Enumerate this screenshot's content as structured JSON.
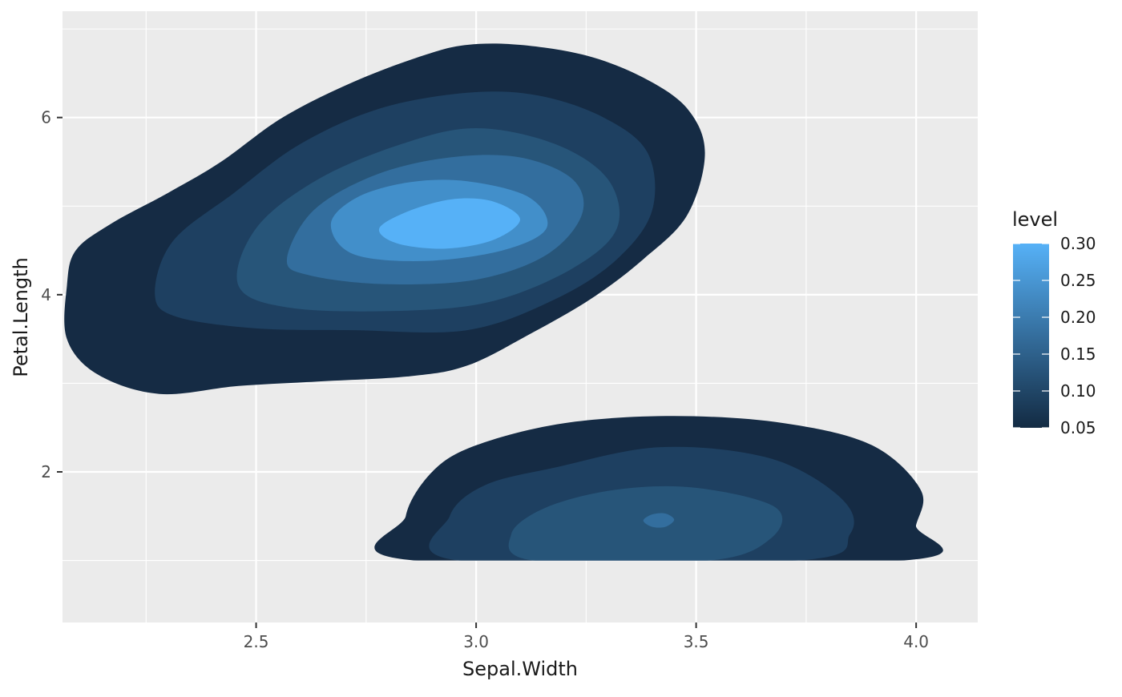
{
  "chart_data": {
    "type": "filled-density-contour",
    "title": "",
    "xlabel": "Sepal.Width",
    "ylabel": "Petal.Length",
    "xlim": [
      2.06,
      4.14
    ],
    "ylim": [
      0.3,
      7.2
    ],
    "x_ticks": [
      {
        "value": 2.5,
        "label": "2.5"
      },
      {
        "value": 3.0,
        "label": "3.0"
      },
      {
        "value": 3.5,
        "label": "3.5"
      },
      {
        "value": 4.0,
        "label": "4.0"
      }
    ],
    "y_ticks": [
      {
        "value": 2,
        "label": "2"
      },
      {
        "value": 4,
        "label": "4"
      },
      {
        "value": 6,
        "label": "6"
      }
    ],
    "x_minor": [
      2.25,
      2.75,
      3.25,
      3.75
    ],
    "y_minor": [
      1,
      3,
      5,
      7
    ],
    "grid": true,
    "legend": {
      "title": "level",
      "position": "right",
      "labels": [
        {
          "value": 0.05,
          "label": "0.05"
        },
        {
          "value": 0.1,
          "label": "0.10"
        },
        {
          "value": 0.15,
          "label": "0.15"
        },
        {
          "value": 0.2,
          "label": "0.20"
        },
        {
          "value": 0.25,
          "label": "0.25"
        },
        {
          "value": 0.3,
          "label": "0.30"
        }
      ],
      "range": [
        0.05,
        0.3
      ],
      "low_color": "#132B43",
      "high_color": "#56B1F7"
    },
    "levels": [
      {
        "level": 0.05,
        "color": "#152b44",
        "polygons": [
          [
            [
              2.07,
              4.1
            ],
            [
              2.09,
              4.5
            ],
            [
              2.17,
              4.8
            ],
            [
              2.3,
              5.15
            ],
            [
              2.42,
              5.5
            ],
            [
              2.56,
              6.0
            ],
            [
              2.72,
              6.4
            ],
            [
              2.88,
              6.7
            ],
            [
              2.98,
              6.82
            ],
            [
              3.1,
              6.82
            ],
            [
              3.25,
              6.7
            ],
            [
              3.38,
              6.45
            ],
            [
              3.48,
              6.1
            ],
            [
              3.52,
              5.6
            ],
            [
              3.48,
              4.9
            ],
            [
              3.38,
              4.4
            ],
            [
              3.26,
              3.95
            ],
            [
              3.12,
              3.55
            ],
            [
              2.98,
              3.2
            ],
            [
              2.85,
              3.08
            ],
            [
              2.64,
              3.02
            ],
            [
              2.46,
              2.97
            ],
            [
              2.28,
              2.88
            ],
            [
              2.14,
              3.1
            ],
            [
              2.07,
              3.5
            ]
          ],
          [
            [
              2.86,
              1.0
            ],
            [
              2.84,
              1.5
            ],
            [
              2.9,
              2.0
            ],
            [
              3.0,
              2.3
            ],
            [
              3.2,
              2.55
            ],
            [
              3.45,
              2.63
            ],
            [
              3.7,
              2.55
            ],
            [
              3.9,
              2.3
            ],
            [
              4.01,
              1.8
            ],
            [
              4.0,
              1.4
            ],
            [
              3.97,
              1.0
            ]
          ]
        ]
      },
      {
        "level": 0.1,
        "color": "#1e4061",
        "polygons": [
          [
            [
              2.27,
              4.0
            ],
            [
              2.31,
              4.6
            ],
            [
              2.45,
              5.15
            ],
            [
              2.6,
              5.7
            ],
            [
              2.78,
              6.1
            ],
            [
              2.98,
              6.28
            ],
            [
              3.14,
              6.25
            ],
            [
              3.29,
              6.0
            ],
            [
              3.39,
              5.6
            ],
            [
              3.4,
              4.95
            ],
            [
              3.32,
              4.4
            ],
            [
              3.18,
              3.95
            ],
            [
              2.98,
              3.6
            ],
            [
              2.72,
              3.6
            ],
            [
              2.5,
              3.62
            ],
            [
              2.32,
              3.75
            ]
          ],
          [
            [
              2.96,
              1.0
            ],
            [
              2.94,
              1.5
            ],
            [
              3.02,
              1.85
            ],
            [
              3.18,
              2.05
            ],
            [
              3.42,
              2.28
            ],
            [
              3.67,
              2.15
            ],
            [
              3.83,
              1.7
            ],
            [
              3.85,
              1.3
            ],
            [
              3.73,
              1.0
            ]
          ]
        ]
      },
      {
        "level": 0.15,
        "color": "#275579",
        "polygons": [
          [
            [
              2.46,
              4.1
            ],
            [
              2.5,
              4.75
            ],
            [
              2.64,
              5.3
            ],
            [
              2.83,
              5.7
            ],
            [
              3.0,
              5.88
            ],
            [
              3.18,
              5.7
            ],
            [
              3.3,
              5.3
            ],
            [
              3.32,
              4.75
            ],
            [
              3.22,
              4.3
            ],
            [
              3.04,
              3.93
            ],
            [
              2.84,
              3.82
            ],
            [
              2.58,
              3.85
            ]
          ],
          [
            [
              3.13,
              1.0
            ],
            [
              3.08,
              1.3
            ],
            [
              3.16,
              1.6
            ],
            [
              3.32,
              1.8
            ],
            [
              3.5,
              1.82
            ],
            [
              3.68,
              1.6
            ],
            [
              3.67,
              1.25
            ],
            [
              3.53,
              1.0
            ]
          ]
        ]
      },
      {
        "level": 0.2,
        "color": "#336e9e",
        "polygons": [
          [
            [
              2.57,
              4.4
            ],
            [
              2.63,
              4.95
            ],
            [
              2.77,
              5.35
            ],
            [
              2.94,
              5.55
            ],
            [
              3.1,
              5.55
            ],
            [
              3.22,
              5.3
            ],
            [
              3.24,
              4.9
            ],
            [
              3.16,
              4.45
            ],
            [
              3.0,
              4.17
            ],
            [
              2.79,
              4.12
            ],
            [
              2.62,
              4.22
            ]
          ]
        ]
      },
      {
        "level": 0.25,
        "color": "#428fca",
        "polygons": [
          [
            [
              2.67,
              4.8
            ],
            [
              2.73,
              5.1
            ],
            [
              2.85,
              5.27
            ],
            [
              2.98,
              5.28
            ],
            [
              3.12,
              5.1
            ],
            [
              3.16,
              4.75
            ],
            [
              3.06,
              4.5
            ],
            [
              2.88,
              4.38
            ],
            [
              2.72,
              4.46
            ]
          ]
        ]
      },
      {
        "level": 0.3,
        "color": "#56b1f7",
        "polygons": [
          [
            [
              2.78,
              4.75
            ],
            [
              2.85,
              4.95
            ],
            [
              2.95,
              5.08
            ],
            [
              3.04,
              5.05
            ],
            [
              3.1,
              4.85
            ],
            [
              3.04,
              4.62
            ],
            [
              2.93,
              4.52
            ],
            [
              2.82,
              4.58
            ]
          ]
        ]
      }
    ],
    "extra_regions": [
      {
        "level": 0.2,
        "color": "#336e9e",
        "polygons": [
          [
            [
              3.38,
              1.45
            ],
            [
              3.4,
              1.52
            ],
            [
              3.43,
              1.53
            ],
            [
              3.45,
              1.46
            ],
            [
              3.43,
              1.38
            ],
            [
              3.4,
              1.38
            ]
          ]
        ]
      }
    ]
  }
}
